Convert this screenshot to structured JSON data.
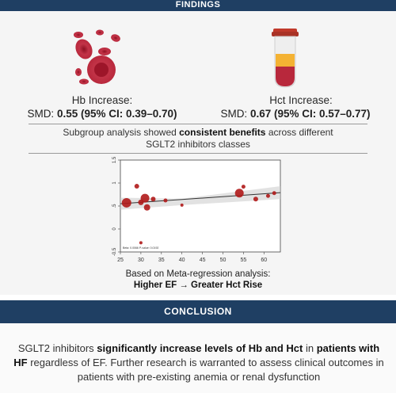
{
  "findings_header": "FINDINGS",
  "hb": {
    "title": "Hb Increase:",
    "smd_label": "SMD: ",
    "smd_value": "0.55 (95% CI: 0.39–0.70)"
  },
  "hct": {
    "title": "Hct Increase:",
    "smd_label": "SMD: ",
    "smd_value": "0.67 (95% CI: 0.57–0.77)"
  },
  "subgroup": {
    "pre": "Subgroup analysis showed ",
    "bold": "consistent benefits",
    "post": " across different",
    "line2": "SGLT2 inhibitors classes"
  },
  "meta": {
    "line1": "Based on Meta-regression analysis:",
    "line2": "Higher EF → Greater Hct Rise"
  },
  "conclusion_header": "CONCLUSION",
  "conclusion": {
    "p1": "SGLT2 inhibitors ",
    "b1": "significantly increase levels of Hb and Hct",
    "p2": " in ",
    "b2": "patients with HF",
    "p3": " regardless of EF. Further research is warranted to assess clinical outcomes in patients with pre-existing anemia or renal dysfunction"
  },
  "colors": {
    "header_bg": "#1f3f63",
    "blood_cell": "#b8283c",
    "tube_fill_top": "#f4b233",
    "tube_fill_bottom": "#b8283c",
    "bubble": "#b01a1a"
  },
  "chart_data": {
    "type": "scatter",
    "title": "",
    "xlabel": "",
    "ylabel": "",
    "xlim": [
      25,
      64
    ],
    "ylim": [
      -0.5,
      1.5
    ],
    "x_ticks": [
      "25",
      "30",
      "35",
      "40",
      "45",
      "50",
      "55",
      "60"
    ],
    "y_ticks": [
      "-0.5",
      "0",
      ".5",
      "1",
      "1.5"
    ],
    "annotation": "Beta: 0.0066   P-value: 0.0192",
    "points": [
      {
        "x": 26.5,
        "y": 0.57,
        "size": 11
      },
      {
        "x": 29,
        "y": 0.93,
        "size": 5
      },
      {
        "x": 30,
        "y": 0.58,
        "size": 6
      },
      {
        "x": 31,
        "y": 0.67,
        "size": 10
      },
      {
        "x": 31.5,
        "y": 0.47,
        "size": 7
      },
      {
        "x": 33,
        "y": 0.65,
        "size": 5
      },
      {
        "x": 36,
        "y": 0.62,
        "size": 4
      },
      {
        "x": 40,
        "y": 0.52,
        "size": 3
      },
      {
        "x": 54,
        "y": 0.78,
        "size": 10
      },
      {
        "x": 55,
        "y": 0.92,
        "size": 4
      },
      {
        "x": 58,
        "y": 0.65,
        "size": 5
      },
      {
        "x": 61,
        "y": 0.72,
        "size": 4
      },
      {
        "x": 62.5,
        "y": 0.78,
        "size": 4
      },
      {
        "x": 30,
        "y": -0.3,
        "size": 3
      }
    ],
    "fit_line": {
      "x": [
        25,
        64
      ],
      "y": [
        0.55,
        0.79
      ]
    },
    "ci_band": {
      "x": [
        25,
        40,
        64
      ],
      "upper": [
        0.68,
        0.66,
        0.93
      ],
      "lower": [
        0.42,
        0.52,
        0.65
      ]
    }
  }
}
